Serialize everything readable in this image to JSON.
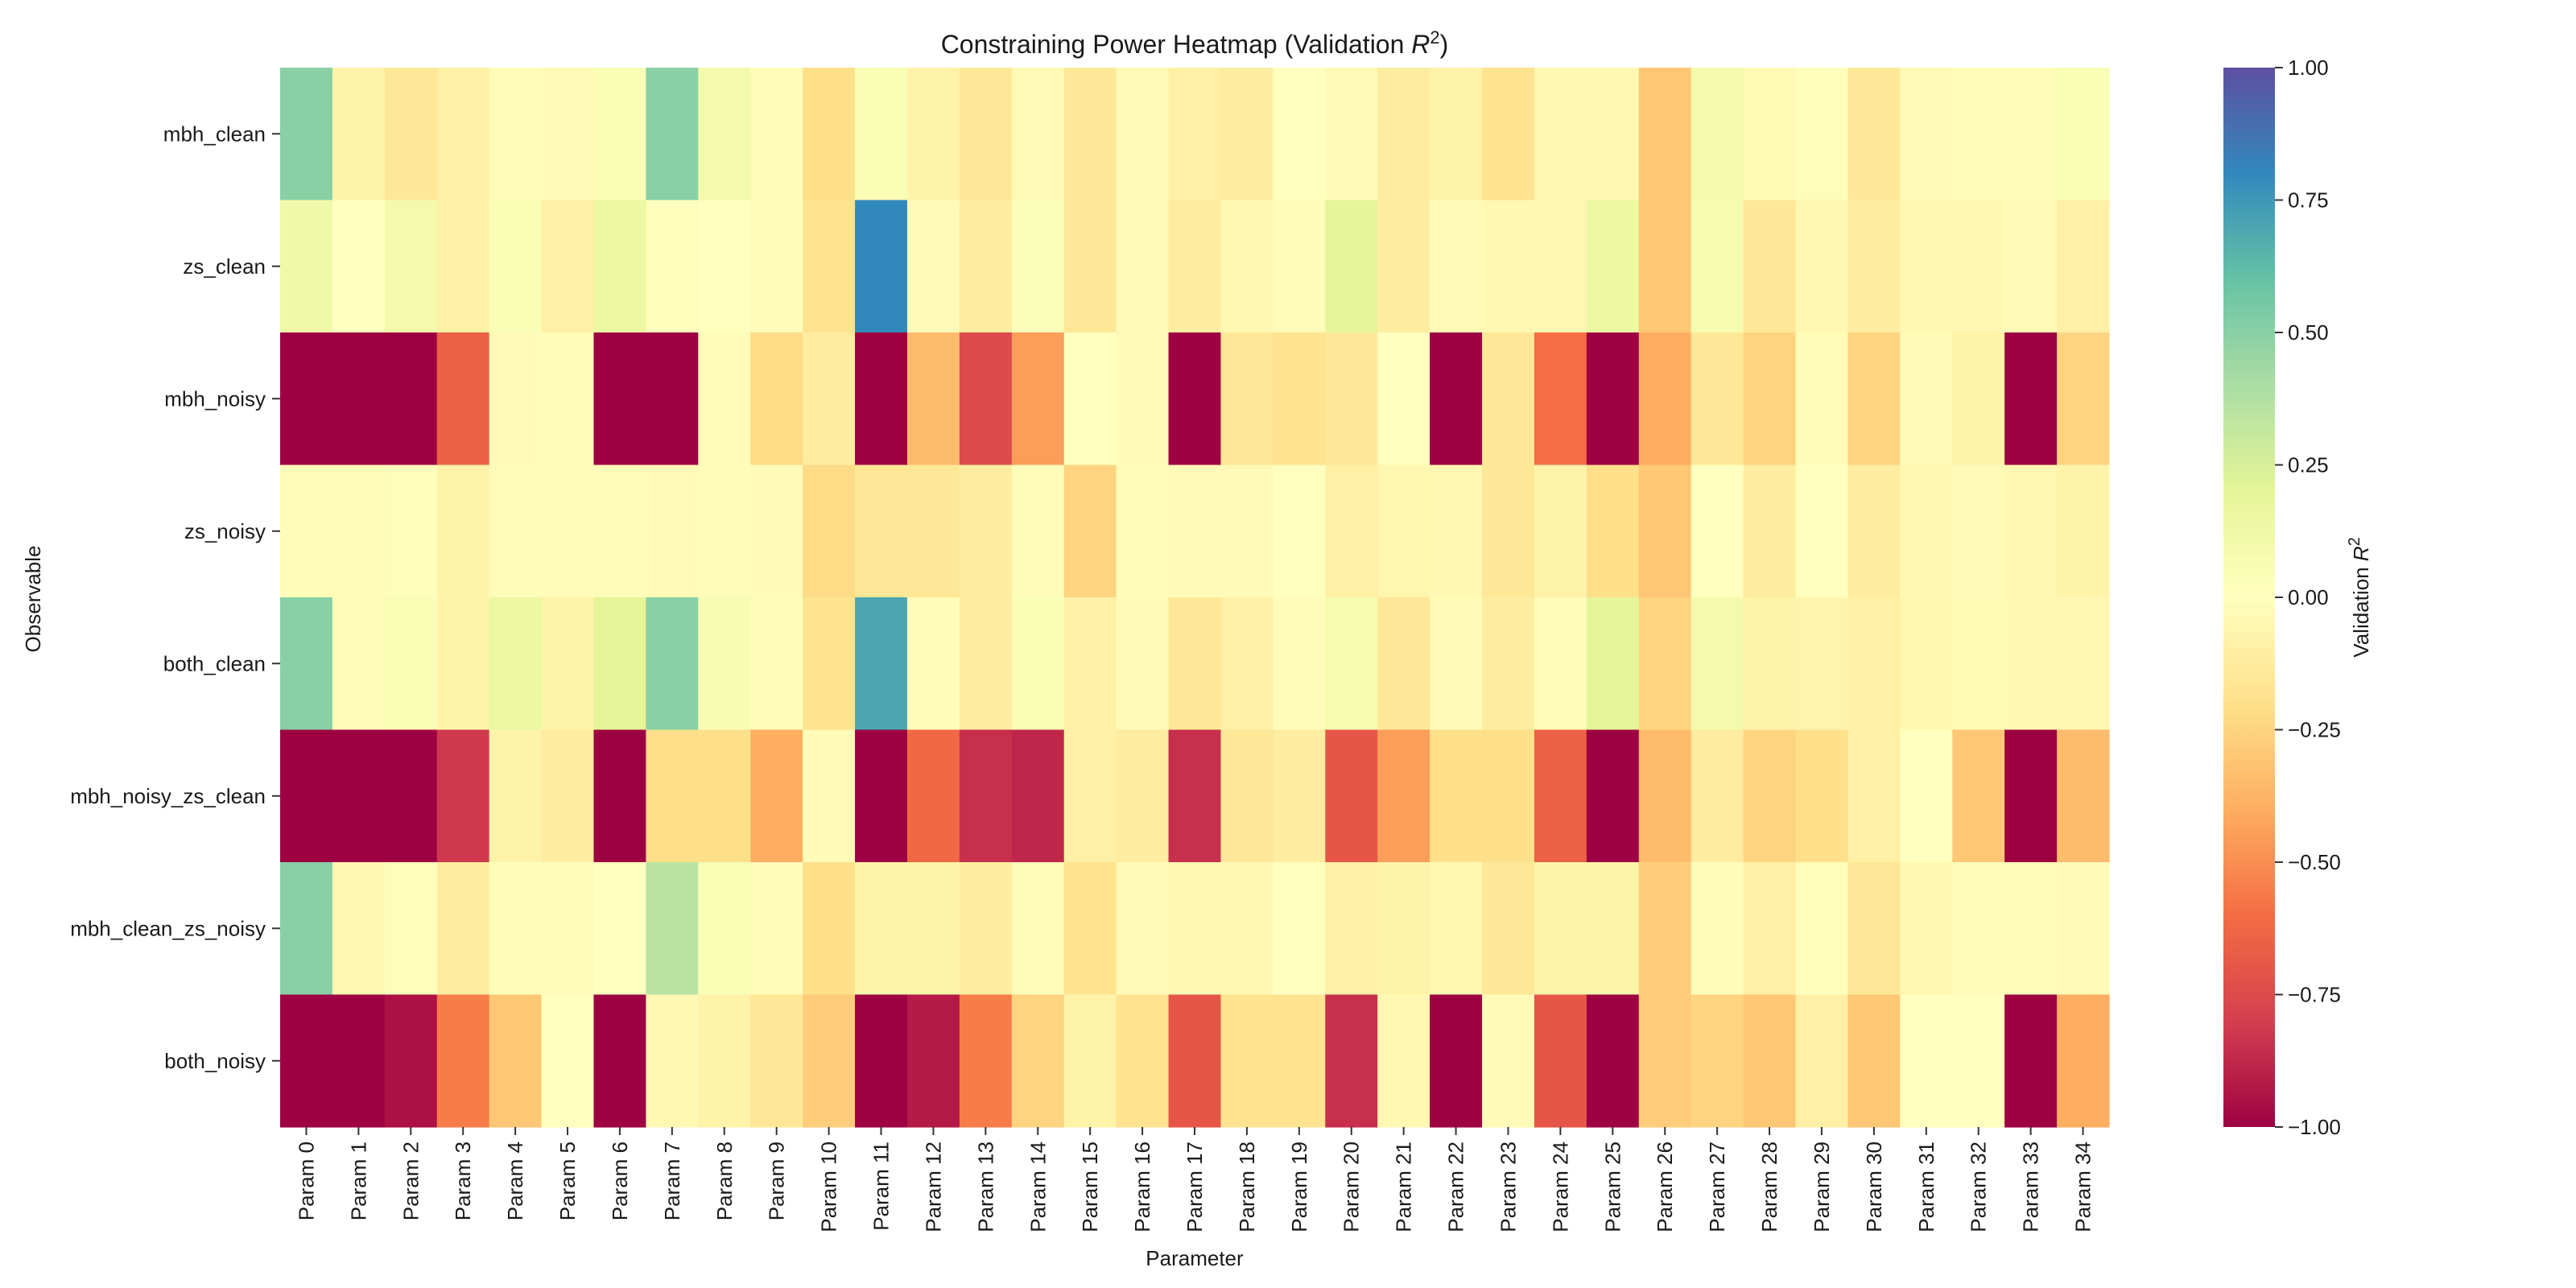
{
  "chart_data": {
    "type": "heatmap",
    "title": "Constraining Power Heatmap (Validation R²)",
    "title_main": "Constraining Power Heatmap (Validation ",
    "title_var": "R",
    "title_sup": "2",
    "title_close": ")",
    "xlabel": "Parameter",
    "ylabel": "Observable",
    "colorbar_label": "Validation R²",
    "colorbar_label_main": "Validation ",
    "colorbar_label_var": "R",
    "colorbar_label_sup": "2",
    "colormap": "Spectral",
    "vmin": -1.0,
    "vmax": 1.0,
    "colorbar_ticks": [
      1.0,
      0.75,
      0.5,
      0.25,
      0.0,
      -0.25,
      -0.5,
      -0.75,
      -1.0
    ],
    "colorbar_tick_labels": [
      "1.00",
      "0.75",
      "0.50",
      "0.25",
      "0.00",
      "−0.25",
      "−0.50",
      "−0.75",
      "−1.00"
    ],
    "x_categories": [
      "Param 0",
      "Param 1",
      "Param 2",
      "Param 3",
      "Param 4",
      "Param 5",
      "Param 6",
      "Param 7",
      "Param 8",
      "Param 9",
      "Param 10",
      "Param 11",
      "Param 12",
      "Param 13",
      "Param 14",
      "Param 15",
      "Param 16",
      "Param 17",
      "Param 18",
      "Param 19",
      "Param 20",
      "Param 21",
      "Param 22",
      "Param 23",
      "Param 24",
      "Param 25",
      "Param 26",
      "Param 27",
      "Param 28",
      "Param 29",
      "Param 30",
      "Param 31",
      "Param 32",
      "Param 33",
      "Param 34"
    ],
    "y_categories": [
      "mbh_clean",
      "zs_clean",
      "mbh_noisy",
      "zs_noisy",
      "both_clean",
      "mbh_noisy_zs_clean",
      "mbh_clean_zs_noisy",
      "both_noisy"
    ],
    "values": [
      [
        0.5,
        -0.08,
        -0.15,
        -0.1,
        -0.02,
        -0.03,
        0.05,
        0.5,
        0.1,
        -0.02,
        -0.2,
        0.05,
        -0.08,
        -0.15,
        -0.03,
        -0.15,
        -0.03,
        -0.1,
        -0.12,
        0.0,
        -0.03,
        -0.12,
        -0.08,
        -0.18,
        -0.05,
        -0.05,
        -0.3,
        0.1,
        -0.04,
        0.02,
        -0.15,
        -0.03,
        -0.02,
        -0.02,
        0.05
      ],
      [
        0.12,
        0.0,
        0.1,
        -0.1,
        0.05,
        -0.1,
        0.15,
        0.02,
        0.0,
        -0.02,
        -0.18,
        0.8,
        -0.03,
        -0.12,
        0.03,
        -0.15,
        -0.03,
        -0.12,
        -0.05,
        -0.02,
        0.2,
        -0.12,
        -0.03,
        -0.05,
        -0.05,
        0.15,
        -0.3,
        0.08,
        -0.15,
        -0.05,
        -0.12,
        -0.05,
        -0.05,
        -0.03,
        -0.1
      ],
      [
        -1.0,
        -1.0,
        -1.0,
        -0.65,
        -0.03,
        -0.02,
        -1.0,
        -1.0,
        -0.02,
        -0.22,
        -0.12,
        -1.0,
        -0.35,
        -0.75,
        -0.45,
        0.0,
        -0.03,
        -1.0,
        -0.15,
        -0.18,
        -0.15,
        0.0,
        -1.0,
        -0.15,
        -0.6,
        -1.0,
        -0.4,
        -0.15,
        -0.25,
        -0.02,
        -0.25,
        -0.03,
        -0.08,
        -1.0,
        -0.25
      ],
      [
        -0.02,
        -0.02,
        0.02,
        -0.08,
        -0.02,
        -0.02,
        -0.02,
        -0.03,
        -0.02,
        -0.03,
        -0.22,
        -0.15,
        -0.15,
        -0.12,
        -0.02,
        -0.25,
        -0.02,
        -0.03,
        -0.03,
        0.0,
        -0.1,
        -0.06,
        -0.05,
        -0.15,
        -0.08,
        -0.2,
        -0.3,
        0.0,
        -0.12,
        0.0,
        -0.12,
        -0.05,
        -0.03,
        -0.05,
        -0.08
      ],
      [
        0.5,
        -0.02,
        0.05,
        -0.08,
        0.15,
        -0.08,
        0.2,
        0.5,
        0.06,
        -0.02,
        -0.18,
        0.7,
        -0.02,
        -0.12,
        0.05,
        -0.1,
        -0.03,
        -0.15,
        -0.1,
        -0.02,
        0.08,
        -0.15,
        -0.03,
        -0.12,
        -0.02,
        0.2,
        -0.25,
        0.1,
        -0.08,
        -0.07,
        -0.1,
        -0.06,
        -0.04,
        -0.05,
        -0.05
      ],
      [
        -1.0,
        -1.0,
        -1.0,
        -0.82,
        -0.08,
        -0.12,
        -1.0,
        -0.2,
        -0.2,
        -0.4,
        -0.03,
        -1.0,
        -0.62,
        -0.85,
        -0.88,
        -0.1,
        -0.12,
        -0.85,
        -0.15,
        -0.12,
        -0.7,
        -0.45,
        -0.2,
        -0.2,
        -0.65,
        -1.0,
        -0.35,
        -0.12,
        -0.25,
        -0.2,
        -0.1,
        0.0,
        -0.3,
        -1.0,
        -0.35
      ],
      [
        0.5,
        -0.05,
        0.02,
        -0.12,
        -0.02,
        -0.02,
        0.0,
        0.35,
        0.05,
        -0.02,
        -0.2,
        -0.08,
        -0.08,
        -0.12,
        -0.02,
        -0.18,
        -0.03,
        -0.05,
        -0.05,
        0.0,
        -0.1,
        -0.08,
        -0.06,
        -0.15,
        -0.08,
        -0.08,
        -0.28,
        -0.02,
        -0.1,
        0.02,
        -0.15,
        -0.05,
        -0.02,
        -0.02,
        -0.03
      ],
      [
        -1.0,
        -1.0,
        -0.95,
        -0.55,
        -0.3,
        0.0,
        -1.0,
        -0.05,
        -0.08,
        -0.15,
        -0.28,
        -1.0,
        -0.92,
        -0.55,
        -0.25,
        -0.08,
        -0.18,
        -0.7,
        -0.18,
        -0.18,
        -0.85,
        -0.05,
        -1.0,
        -0.03,
        -0.7,
        -1.0,
        -0.28,
        -0.25,
        -0.3,
        -0.1,
        -0.3,
        0.0,
        0.0,
        -1.0,
        -0.4
      ]
    ]
  }
}
